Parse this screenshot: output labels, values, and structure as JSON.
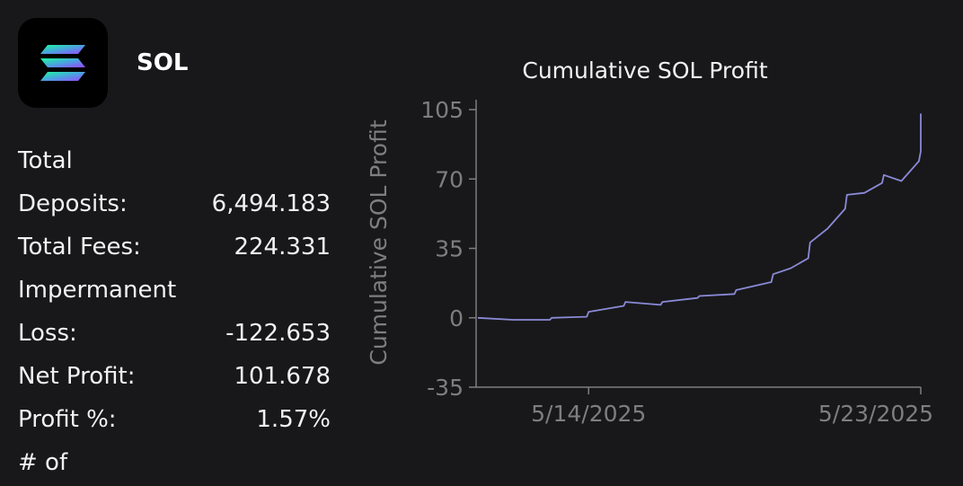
{
  "token": {
    "name": "SOL",
    "logo": "solana-logo-icon"
  },
  "stats": [
    {
      "label": "Total",
      "value": ""
    },
    {
      "label": "Deposits:",
      "value": "6,494.183"
    },
    {
      "label": "Total Fees:",
      "value": "224.331"
    },
    {
      "label": "Impermanent",
      "value": ""
    },
    {
      "label": "Loss:",
      "value": "-122.653"
    },
    {
      "label": "Net Profit:",
      "value": "101.678"
    },
    {
      "label": "Profit %:",
      "value": "1.57%"
    },
    {
      "label": "# of",
      "value": ""
    }
  ],
  "chart_data": {
    "type": "line",
    "title": "Cumulative SOL Profit",
    "xlabel": "",
    "ylabel": "Cumulative SOL Profit",
    "ylim": [
      -35,
      105
    ],
    "yticks": [
      -35,
      0,
      35,
      70,
      105
    ],
    "xlim": [
      "5/11/2025",
      "5/23/2025"
    ],
    "xticks": [
      {
        "date": "5/14/2025",
        "label": "5/14/2025"
      },
      {
        "date": "5/23/2025",
        "label": "5/23/2025"
      }
    ],
    "grid": false,
    "legend": "none",
    "line_color": "#8a8ad8",
    "series": [
      {
        "x": [
          "5/11/2025",
          "5/11/2025",
          "5/12/2025",
          "5/12/2025",
          "5/13/2025",
          "5/13/2025",
          "5/14/2025",
          "5/14/2025",
          "5/15/2025",
          "5/15/2025",
          "5/16/2025",
          "5/16/2025",
          "5/17/2025",
          "5/17/2025",
          "5/18/2025",
          "5/18/2025",
          "5/19/2025",
          "5/19/2025",
          "5/19/2025",
          "5/20/2025",
          "5/20/2025",
          "5/20/2025",
          "5/21/2025",
          "5/21/2025",
          "5/21/2025",
          "5/22/2025",
          "5/22/2025",
          "5/22/2025",
          "5/23/2025",
          "5/23/2025"
        ],
        "y": [
          0,
          -1,
          -1,
          -1,
          0,
          0.5,
          3,
          6,
          8,
          6.5,
          8,
          10,
          11,
          12,
          14,
          18,
          22,
          25,
          30,
          38,
          45,
          55,
          62,
          63,
          68,
          72,
          69,
          79,
          84,
          103
        ]
      }
    ]
  }
}
